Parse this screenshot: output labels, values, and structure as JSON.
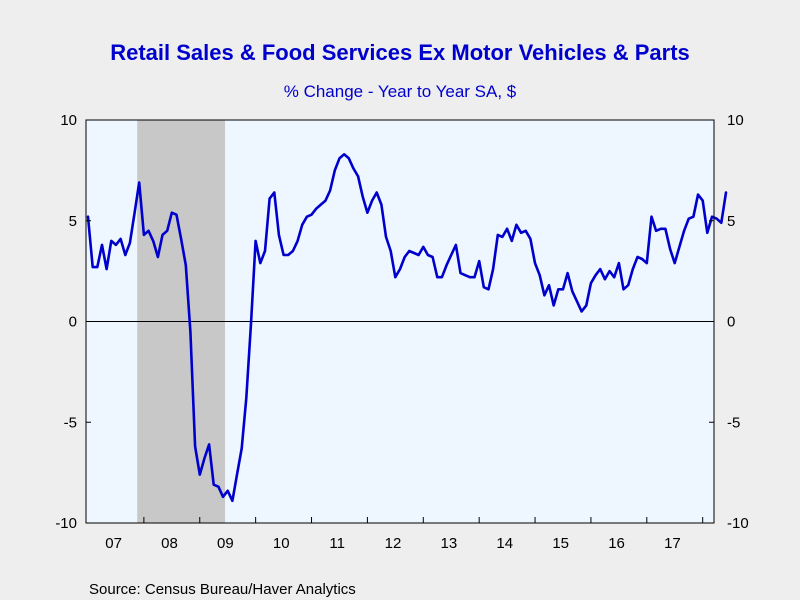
{
  "chart_data": {
    "type": "line",
    "title": "Retail Sales & Food Services Ex Motor Vehicles & Parts",
    "subtitle": "% Change - Year to Year     SA, $",
    "source": "Source:  Census Bureau/Haver Analytics",
    "xlabel": "",
    "ylabel": "",
    "x_start": "2007-01",
    "x_end": "2018-03",
    "x_tick_labels": [
      "07",
      "08",
      "09",
      "10",
      "11",
      "12",
      "13",
      "14",
      "15",
      "16",
      "17"
    ],
    "ylim": [
      -10,
      10
    ],
    "y_ticks": [
      10,
      5,
      0,
      -5,
      -10
    ],
    "y_tick_labels": [
      "10",
      "5",
      "0",
      "-5",
      "-10"
    ],
    "recession": {
      "start": "2007-12",
      "end": "2009-06"
    },
    "series": [
      {
        "color": "#0000cc",
        "values": [
          5.2,
          2.7,
          2.7,
          3.8,
          2.6,
          4.0,
          3.8,
          4.1,
          3.3,
          3.9,
          5.4,
          6.9,
          4.3,
          4.5,
          4.0,
          3.2,
          4.3,
          4.5,
          5.4,
          5.3,
          4.1,
          2.8,
          -0.5,
          -6.2,
          -7.6,
          -6.8,
          -6.1,
          -8.1,
          -8.2,
          -8.7,
          -8.4,
          -8.9,
          -7.6,
          -6.3,
          -3.8,
          -0.1,
          4.0,
          2.9,
          3.5,
          6.1,
          6.4,
          4.3,
          3.3,
          3.3,
          3.5,
          4.0,
          4.8,
          5.2,
          5.3,
          5.6,
          5.8,
          6.0,
          6.5,
          7.5,
          8.1,
          8.3,
          8.1,
          7.6,
          7.2,
          6.2,
          5.4,
          6.0,
          6.4,
          5.8,
          4.2,
          3.5,
          2.2,
          2.6,
          3.2,
          3.5,
          3.4,
          3.3,
          3.7,
          3.3,
          3.2,
          2.2,
          2.2,
          2.8,
          3.3,
          3.8,
          2.4,
          2.3,
          2.2,
          2.2,
          3.0,
          1.7,
          1.6,
          2.6,
          4.3,
          4.2,
          4.6,
          4.0,
          4.8,
          4.4,
          4.5,
          4.1,
          2.9,
          2.3,
          1.3,
          1.8,
          0.8,
          1.6,
          1.6,
          2.4,
          1.5,
          1.0,
          0.5,
          0.8,
          1.9,
          2.3,
          2.6,
          2.1,
          2.5,
          2.2,
          2.9,
          1.6,
          1.8,
          2.6,
          3.2,
          3.1,
          2.9,
          5.2,
          4.5,
          4.6,
          4.6,
          3.6,
          2.9,
          3.7,
          4.5,
          5.1,
          5.2,
          6.3,
          6.0,
          4.4,
          5.2,
          5.1,
          4.9,
          6.4
        ]
      }
    ],
    "grid": false,
    "legend": "none"
  }
}
